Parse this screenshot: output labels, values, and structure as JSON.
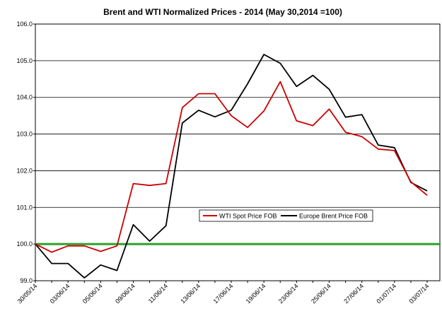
{
  "chart_data": {
    "type": "line",
    "title": "Brent and WTI Normalized Prices  - 2014 (May 30,2014 =100)",
    "xlabel": "",
    "ylabel": "",
    "ylim": [
      99.0,
      106.0
    ],
    "y_ticks": [
      "99.0",
      "100.0",
      "101.0",
      "102.0",
      "103.0",
      "104.0",
      "105.0",
      "106.0"
    ],
    "x": [
      "30/05/14",
      "02/06/14",
      "03/06/14",
      "04/06/14",
      "05/06/14",
      "06/06/14",
      "09/06/14",
      "10/06/14",
      "11/06/14",
      "12/06/14",
      "13/06/14",
      "16/06/14",
      "17/06/14",
      "18/06/14",
      "19/06/14",
      "20/06/14",
      "23/06/14",
      "24/06/14",
      "25/06/14",
      "26/06/14",
      "27/06/14",
      "30/06/14",
      "01/07/14",
      "02/07/14",
      "03/07/14"
    ],
    "x_tick_labels": [
      "30/05/14",
      "03/06/14",
      "05/06/14",
      "09/06/14",
      "11/06/14",
      "13/06/14",
      "17/06/14",
      "19/06/14",
      "23/06/14",
      "25/06/14",
      "27/06/14",
      "01/07/14",
      "03/07/14"
    ],
    "series": [
      {
        "name": "WTI Spot Price FOB",
        "color": "#cc0000",
        "values": [
          100.0,
          99.78,
          99.95,
          99.95,
          99.8,
          99.95,
          101.65,
          101.6,
          101.65,
          103.72,
          104.1,
          104.1,
          103.5,
          103.18,
          103.63,
          104.43,
          103.36,
          103.23,
          103.68,
          103.05,
          102.93,
          102.59,
          102.55,
          101.7,
          101.33
        ]
      },
      {
        "name": "Europe Brent Price FOB",
        "color": "#000000",
        "values": [
          100.0,
          99.47,
          99.47,
          99.08,
          99.43,
          99.28,
          100.53,
          100.08,
          100.5,
          103.3,
          103.65,
          103.47,
          103.65,
          104.37,
          105.17,
          104.93,
          104.3,
          104.6,
          104.22,
          103.46,
          103.53,
          102.7,
          102.63,
          101.68,
          101.45
        ]
      }
    ],
    "reference_line": {
      "value": 100.0,
      "color": "#2ca02c"
    },
    "grid": true,
    "legend_position": "center-right"
  }
}
